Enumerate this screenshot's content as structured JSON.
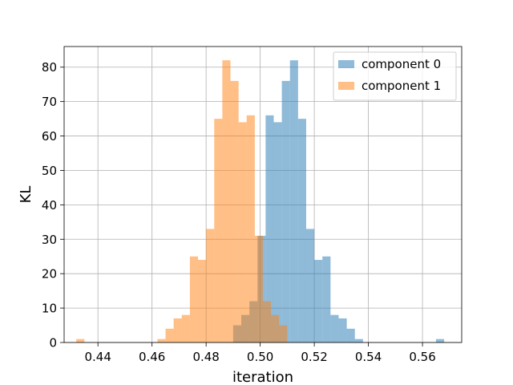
{
  "chart_data": {
    "type": "bar",
    "subtype": "overlapping-histogram",
    "title": "",
    "xlabel": "iteration",
    "ylabel": "KL",
    "xlim": [
      0.4275,
      0.5745
    ],
    "ylim": [
      0,
      86
    ],
    "xticks": [
      "0.44",
      "0.46",
      "0.48",
      "0.50",
      "0.52",
      "0.54",
      "0.56"
    ],
    "yticks": [
      "0",
      "10",
      "20",
      "30",
      "40",
      "50",
      "60",
      "70",
      "80"
    ],
    "grid": true,
    "legend_position": "top-right",
    "bin_width": 0.003,
    "series": [
      {
        "name": "component 0",
        "color": "#1f77b4",
        "opacity": 0.5,
        "bins": [
          {
            "x": 0.4915,
            "count": 5
          },
          {
            "x": 0.4945,
            "count": 8
          },
          {
            "x": 0.4975,
            "count": 12
          },
          {
            "x": 0.5005,
            "count": 31
          },
          {
            "x": 0.5035,
            "count": 66
          },
          {
            "x": 0.5065,
            "count": 64
          },
          {
            "x": 0.5095,
            "count": 76
          },
          {
            "x": 0.5125,
            "count": 82
          },
          {
            "x": 0.5155,
            "count": 65
          },
          {
            "x": 0.5185,
            "count": 33
          },
          {
            "x": 0.5215,
            "count": 24
          },
          {
            "x": 0.5245,
            "count": 25
          },
          {
            "x": 0.5275,
            "count": 8
          },
          {
            "x": 0.5305,
            "count": 7
          },
          {
            "x": 0.5335,
            "count": 4
          },
          {
            "x": 0.5365,
            "count": 1
          },
          {
            "x": 0.5665,
            "count": 1
          }
        ]
      },
      {
        "name": "component 1",
        "color": "#ff7f0e",
        "opacity": 0.5,
        "bins": [
          {
            "x": 0.4335,
            "count": 1
          },
          {
            "x": 0.4635,
            "count": 1
          },
          {
            "x": 0.4665,
            "count": 4
          },
          {
            "x": 0.4695,
            "count": 7
          },
          {
            "x": 0.4725,
            "count": 8
          },
          {
            "x": 0.4755,
            "count": 25
          },
          {
            "x": 0.4785,
            "count": 24
          },
          {
            "x": 0.4815,
            "count": 33
          },
          {
            "x": 0.4845,
            "count": 65
          },
          {
            "x": 0.4875,
            "count": 82
          },
          {
            "x": 0.4905,
            "count": 76
          },
          {
            "x": 0.4935,
            "count": 64
          },
          {
            "x": 0.4965,
            "count": 66
          },
          {
            "x": 0.4995,
            "count": 31
          },
          {
            "x": 0.5025,
            "count": 12
          },
          {
            "x": 0.5055,
            "count": 8
          },
          {
            "x": 0.5085,
            "count": 5
          }
        ]
      }
    ]
  }
}
